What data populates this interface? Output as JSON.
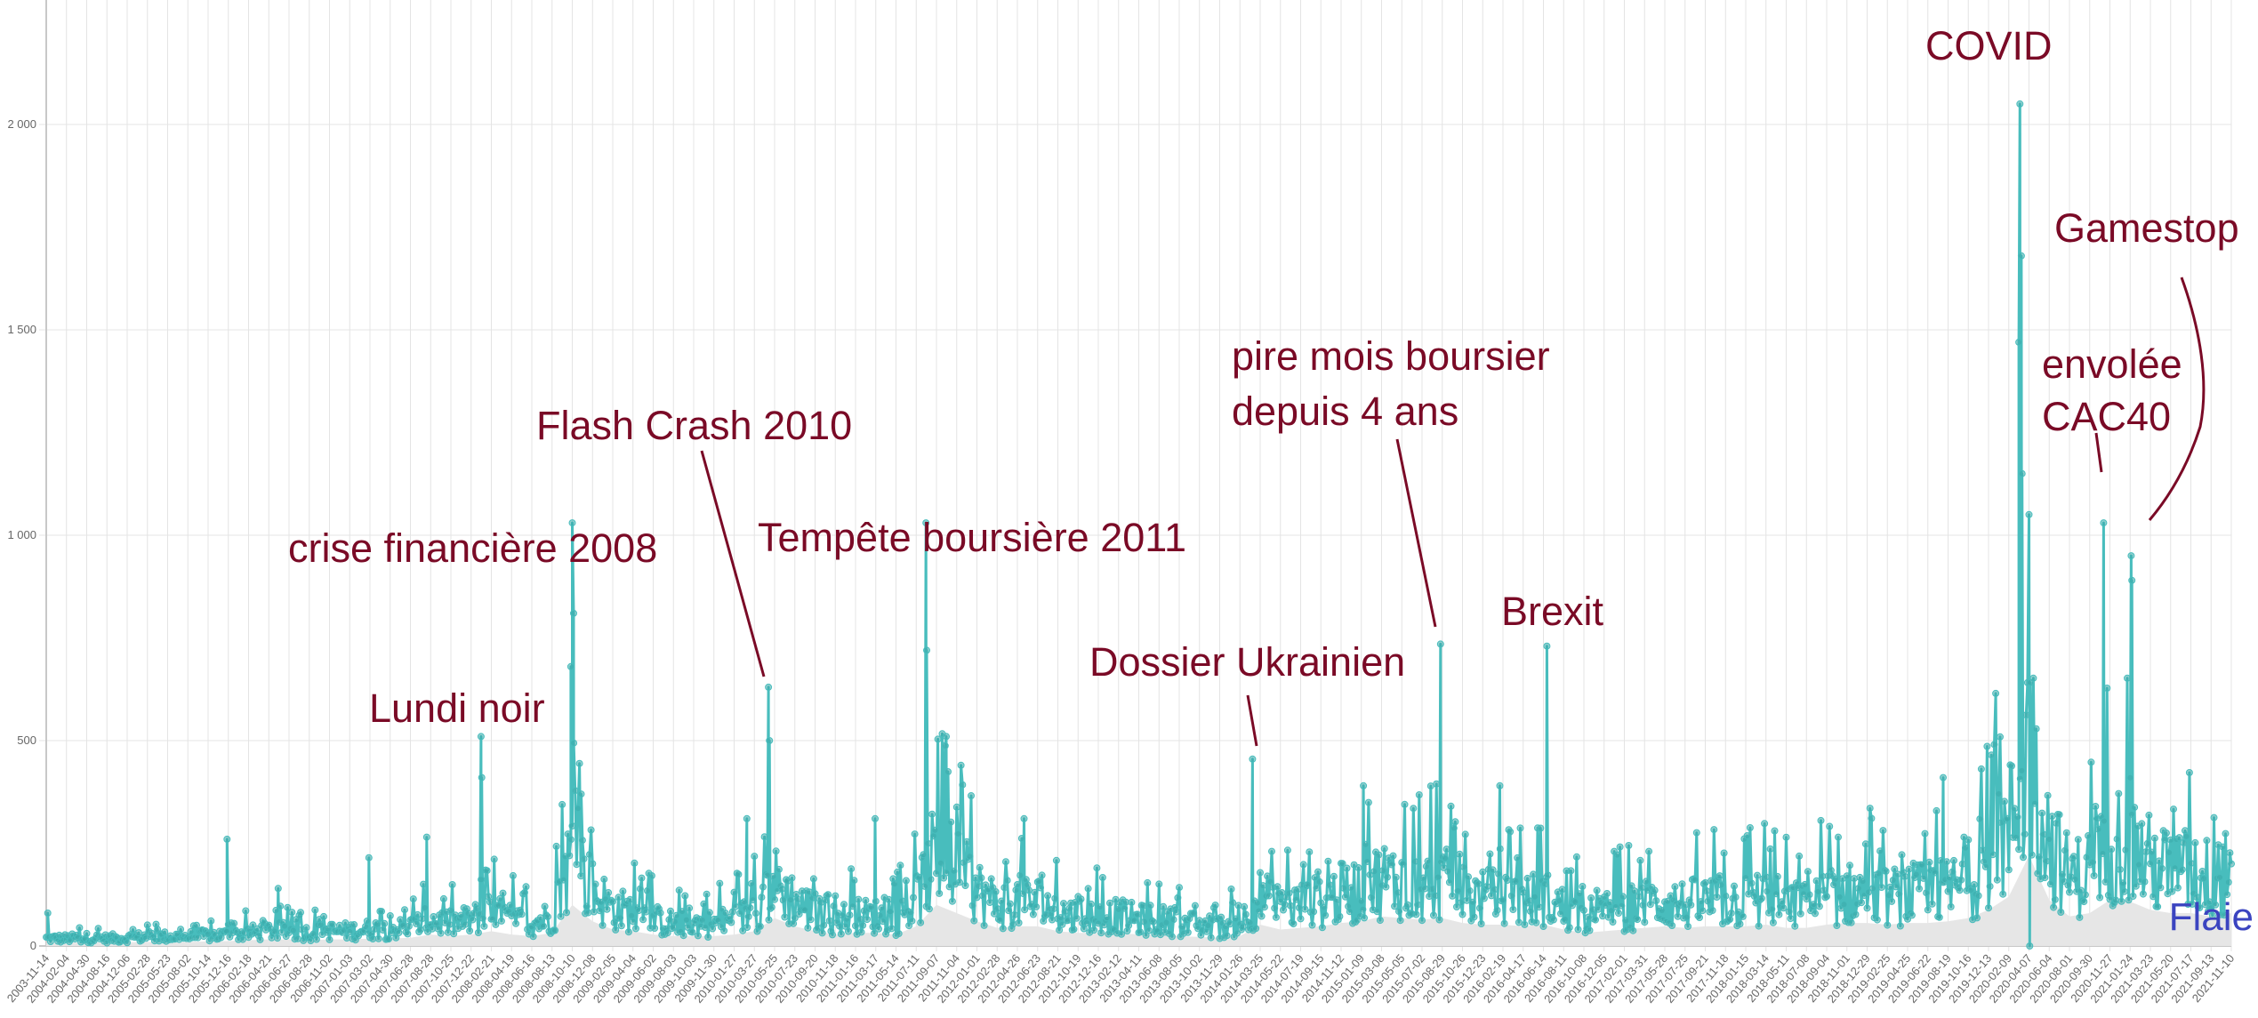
{
  "colors": {
    "series": "#48bdbd",
    "marker": "#3aa9a9",
    "floor": "#e6e6e6",
    "annotation": "#7a0a26",
    "watermark": "#3b44c0",
    "grid": "#e4e4e4"
  },
  "watermark": "Flaie",
  "chart_data": {
    "type": "line",
    "title": "",
    "xlabel": "",
    "ylabel": "",
    "ylim": [
      0,
      2000
    ],
    "yticks": [
      0,
      500,
      1000,
      1500,
      2000
    ],
    "ytick_labels": [
      "0",
      "500",
      "1 000",
      "1 500",
      "2 000"
    ],
    "grid": true,
    "x_ticks": [
      "2003-11-14",
      "2004-02-04",
      "2004-04-30",
      "2004-08-16",
      "2004-12-06",
      "2005-02-28",
      "2005-05-23",
      "2005-08-02",
      "2005-10-14",
      "2005-12-16",
      "2006-02-18",
      "2006-04-21",
      "2006-06-27",
      "2006-08-28",
      "2006-11-02",
      "2007-01-03",
      "2007-03-02",
      "2007-04-30",
      "2007-06-28",
      "2007-08-28",
      "2007-10-25",
      "2007-12-22",
      "2008-02-21",
      "2008-04-19",
      "2008-06-16",
      "2008-08-13",
      "2008-10-10",
      "2008-12-08",
      "2009-02-05",
      "2009-04-04",
      "2009-06-02",
      "2009-08-03",
      "2009-10-03",
      "2009-11-30",
      "2010-01-27",
      "2010-03-27",
      "2010-05-25",
      "2010-07-23",
      "2010-09-20",
      "2010-11-18",
      "2011-01-16",
      "2011-03-17",
      "2011-05-14",
      "2011-07-11",
      "2011-09-07",
      "2011-11-04",
      "2012-01-01",
      "2012-02-28",
      "2012-04-26",
      "2012-06-23",
      "2012-08-21",
      "2012-10-19",
      "2012-12-16",
      "2013-02-12",
      "2013-04-11",
      "2013-06-08",
      "2013-08-05",
      "2013-10-02",
      "2013-11-29",
      "2014-01-26",
      "2014-03-25",
      "2014-05-22",
      "2014-07-19",
      "2014-09-15",
      "2014-11-12",
      "2015-01-09",
      "2015-03-08",
      "2015-05-05",
      "2015-07-02",
      "2015-08-29",
      "2015-10-26",
      "2015-12-23",
      "2016-02-19",
      "2016-04-17",
      "2016-06-14",
      "2016-08-11",
      "2016-10-08",
      "2016-12-05",
      "2017-02-01",
      "2017-03-31",
      "2017-05-28",
      "2017-07-25",
      "2017-09-21",
      "2017-11-18",
      "2018-01-15",
      "2018-03-14",
      "2018-05-11",
      "2018-07-08",
      "2018-09-04",
      "2018-11-01",
      "2018-12-29",
      "2019-02-25",
      "2019-04-25",
      "2019-06-22",
      "2019-08-19",
      "2019-10-16",
      "2019-12-13",
      "2020-02-09",
      "2020-04-07",
      "2020-06-04",
      "2020-08-01",
      "2020-09-30",
      "2020-11-27",
      "2021-01-24",
      "2021-03-23",
      "2021-05-20",
      "2021-07-17",
      "2021-09-13",
      "2021-11-10"
    ],
    "typical_level_at_ticks": [
      20,
      20,
      22,
      20,
      22,
      25,
      25,
      25,
      28,
      30,
      35,
      40,
      40,
      35,
      40,
      40,
      45,
      45,
      50,
      70,
      60,
      70,
      90,
      70,
      60,
      80,
      250,
      150,
      100,
      90,
      70,
      60,
      60,
      60,
      70,
      90,
      170,
      120,
      90,
      70,
      80,
      80,
      70,
      120,
      250,
      200,
      150,
      110,
      120,
      120,
      90,
      80,
      80,
      80,
      70,
      70,
      60,
      55,
      50,
      60,
      130,
      100,
      110,
      120,
      140,
      150,
      180,
      170,
      160,
      170,
      140,
      130,
      130,
      120,
      130,
      100,
      80,
      90,
      100,
      110,
      120,
      110,
      120,
      120,
      120,
      130,
      110,
      110,
      130,
      140,
      140,
      130,
      140,
      140,
      150,
      170,
      220,
      300,
      550,
      280,
      180,
      200,
      280,
      270,
      220,
      200,
      200,
      180,
      200
    ],
    "peaks": [
      {
        "date": "2003-11-20",
        "value": 80
      },
      {
        "date": "2005-12-12",
        "value": 260
      },
      {
        "date": "2006-05-22",
        "value": 140
      },
      {
        "date": "2007-02-27",
        "value": 215
      },
      {
        "date": "2007-08-16",
        "value": 265
      },
      {
        "date": "2008-01-21",
        "value": 510
      },
      {
        "date": "2008-01-23",
        "value": 410
      },
      {
        "date": "2008-10-06",
        "value": 680
      },
      {
        "date": "2008-10-10",
        "value": 1030
      },
      {
        "date": "2008-10-14",
        "value": 810
      },
      {
        "date": "2008-11-05",
        "value": 370
      },
      {
        "date": "2010-03-05",
        "value": 310
      },
      {
        "date": "2010-05-07",
        "value": 630
      },
      {
        "date": "2010-05-10",
        "value": 500
      },
      {
        "date": "2011-03-15",
        "value": 310
      },
      {
        "date": "2011-08-08",
        "value": 1030
      },
      {
        "date": "2011-08-10",
        "value": 720
      },
      {
        "date": "2011-10-05",
        "value": 510
      },
      {
        "date": "2012-05-15",
        "value": 310
      },
      {
        "date": "2014-03-03",
        "value": 455
      },
      {
        "date": "2015-01-15",
        "value": 390
      },
      {
        "date": "2015-08-24",
        "value": 735
      },
      {
        "date": "2016-02-10",
        "value": 390
      },
      {
        "date": "2016-06-24",
        "value": 730
      },
      {
        "date": "2019-08-05",
        "value": 410
      },
      {
        "date": "2020-03-09",
        "value": 1470
      },
      {
        "date": "2020-03-12",
        "value": 2050
      },
      {
        "date": "2020-03-16",
        "value": 1680
      },
      {
        "date": "2020-03-18",
        "value": 1150
      },
      {
        "date": "2020-04-09",
        "value": 0
      },
      {
        "date": "2020-11-09",
        "value": 1030
      },
      {
        "date": "2021-01-27",
        "value": 950
      },
      {
        "date": "2021-01-29",
        "value": 890
      }
    ],
    "annotations": [
      {
        "label": "COVID",
        "date": "2020-03-12"
      },
      {
        "label": "Gamestop",
        "date": "2021-01-27"
      },
      {
        "label": "envolée",
        "date": "2020-11-09"
      },
      {
        "label": "CAC40",
        "date": "2020-11-09"
      },
      {
        "label": "pire mois boursier",
        "date": "2015-08-24"
      },
      {
        "label": "depuis 4 ans",
        "date": "2015-08-24"
      },
      {
        "label": "Flash Crash 2010",
        "date": "2010-05-07"
      },
      {
        "label": "Tempête boursière 2011",
        "date": "2011-08-08"
      },
      {
        "label": "crise financière 2008",
        "date": "2008-10-10"
      },
      {
        "label": "Dossier Ukrainien",
        "date": "2014-03-03"
      },
      {
        "label": "Lundi noir",
        "date": "2008-01-21"
      },
      {
        "label": "Brexit",
        "date": "2016-06-24"
      }
    ]
  }
}
